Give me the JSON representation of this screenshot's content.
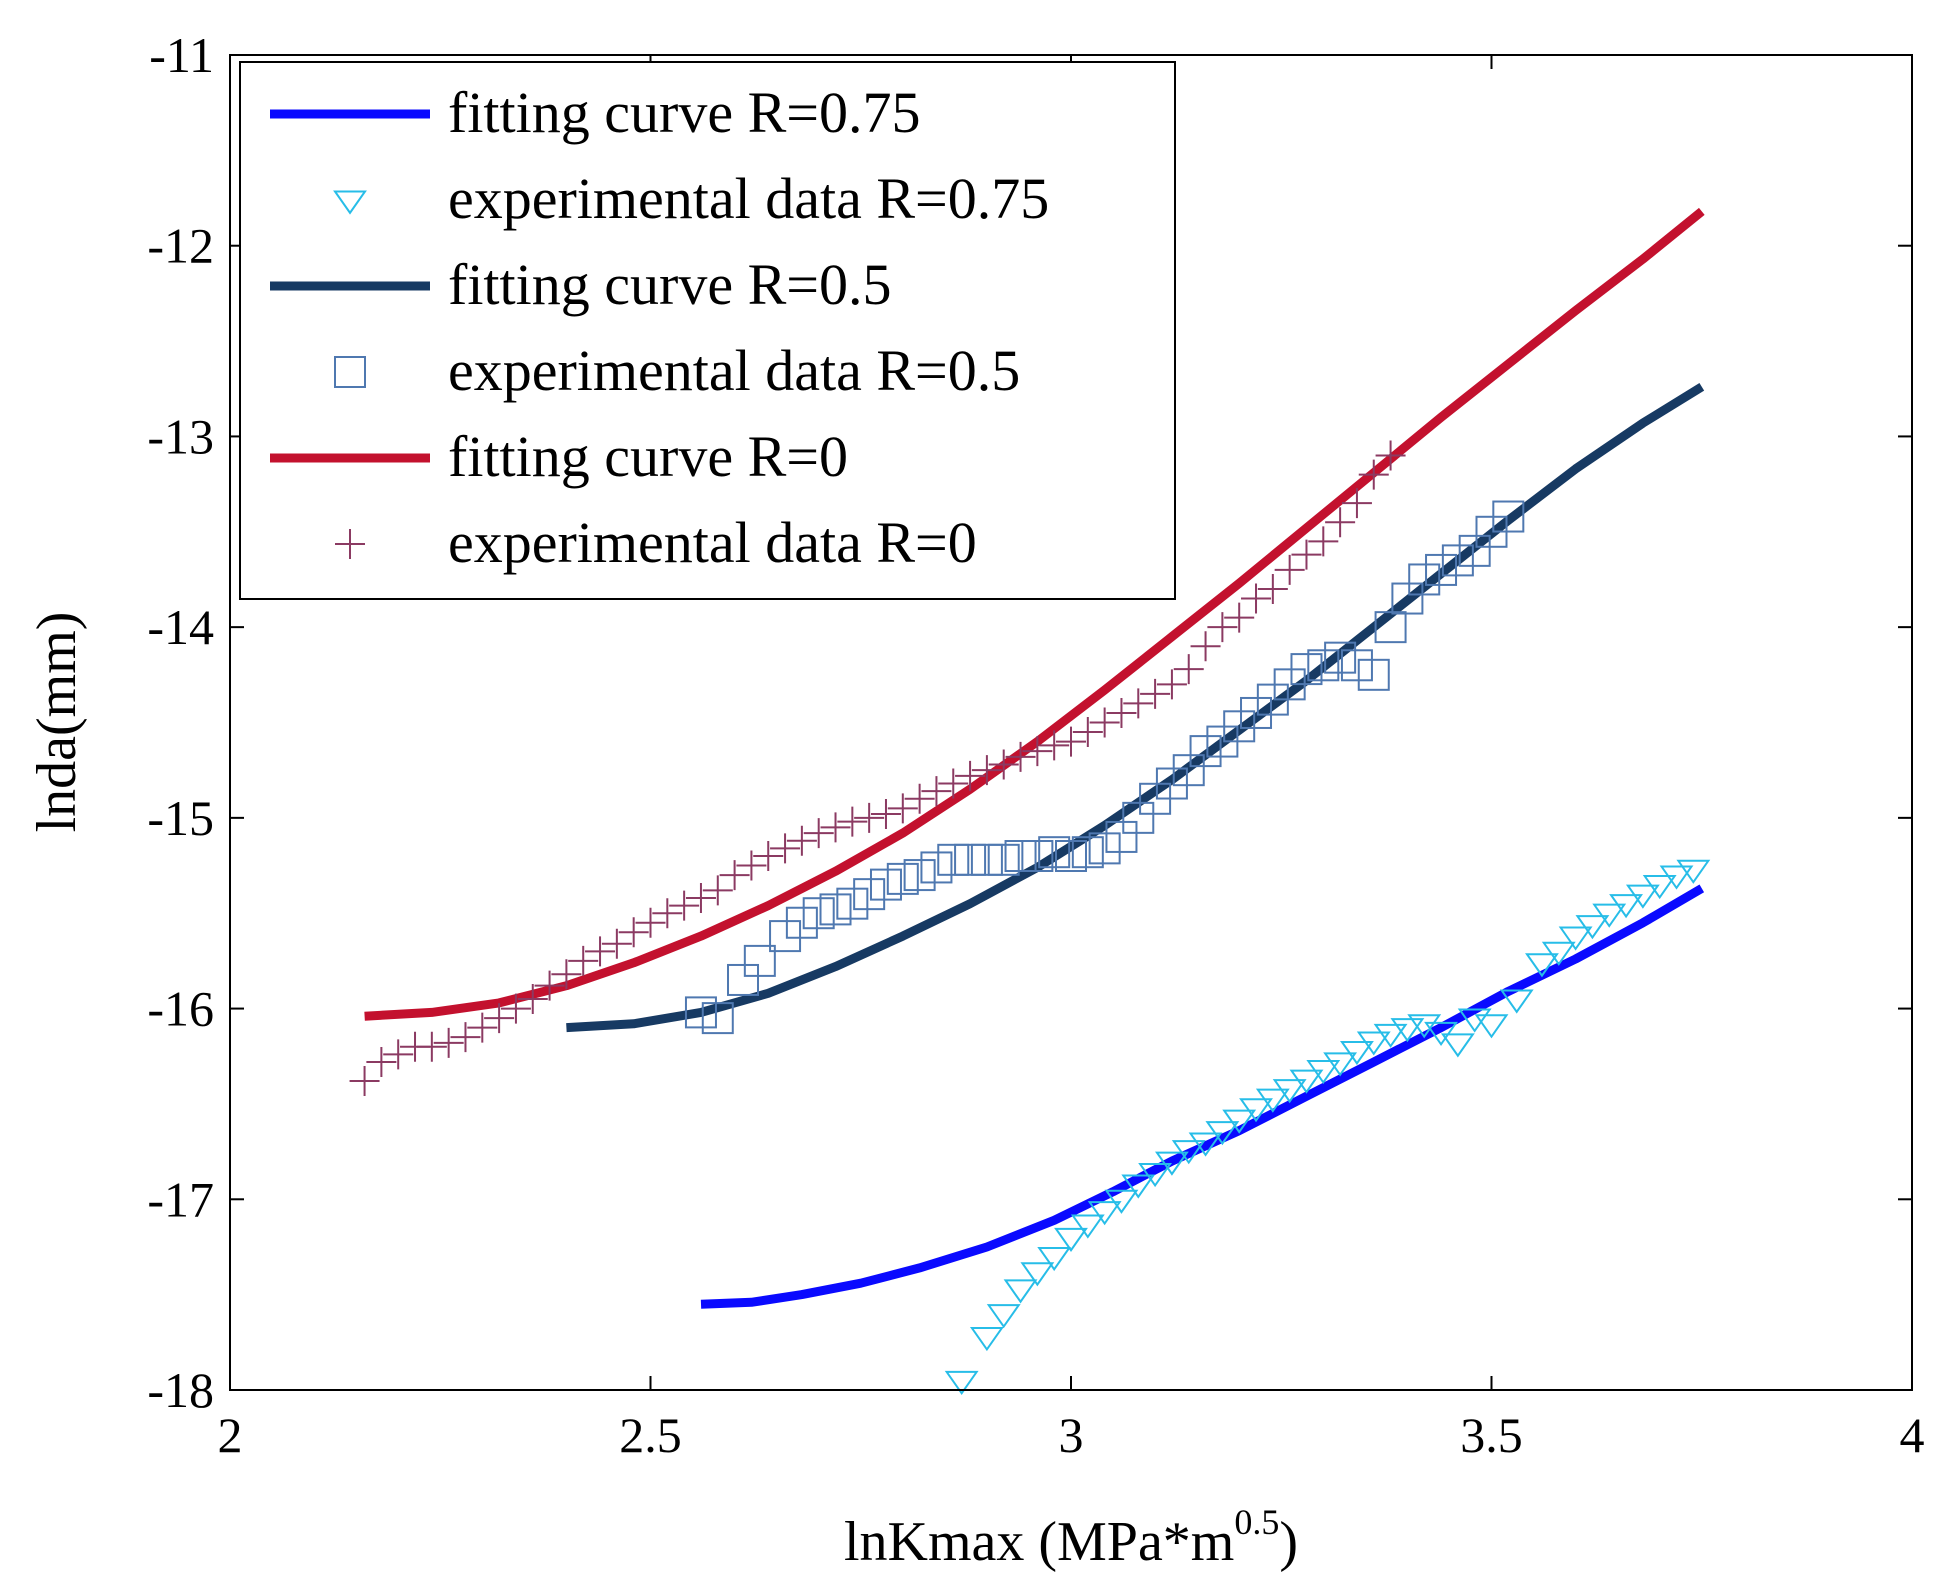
{
  "chart_data": {
    "type": "line",
    "title": "",
    "xlabel_main": "lnKmax (MPa*m",
    "xlabel_sup": "0.5",
    "xlabel_close": ")",
    "ylabel": "lnda(mm)",
    "xlim": [
      2,
      4
    ],
    "ylim": [
      -18,
      -11
    ],
    "xticks": [
      2,
      2.5,
      3,
      3.5,
      4
    ],
    "xtick_labels": [
      "2",
      "2.5",
      "3",
      "3.5",
      "4"
    ],
    "yticks": [
      -11,
      -12,
      -13,
      -14,
      -15,
      -16,
      -17,
      -18
    ],
    "ytick_labels": [
      "-11",
      "-12",
      "-13",
      "-14",
      "-15",
      "-16",
      "-17",
      "-18"
    ],
    "grid": false,
    "legend_position": "top-left",
    "series": [
      {
        "name": "fitting curve R=0.75",
        "kind": "line",
        "color": "#0a0aff",
        "x": [
          2.56,
          2.62,
          2.68,
          2.75,
          2.82,
          2.9,
          2.98,
          3.05,
          3.12,
          3.2,
          3.28,
          3.36,
          3.44,
          3.52,
          3.6,
          3.68,
          3.75
        ],
        "y": [
          -17.55,
          -17.54,
          -17.5,
          -17.44,
          -17.36,
          -17.25,
          -17.11,
          -16.96,
          -16.8,
          -16.64,
          -16.46,
          -16.28,
          -16.1,
          -15.91,
          -15.74,
          -15.55,
          -15.37
        ]
      },
      {
        "name": "experimental data R=0.75",
        "kind": "marker",
        "marker": "triangle-down",
        "color": "#27bde8",
        "x": [
          2.87,
          2.9,
          2.92,
          2.94,
          2.96,
          2.98,
          3.0,
          3.02,
          3.04,
          3.06,
          3.08,
          3.1,
          3.12,
          3.14,
          3.16,
          3.18,
          3.2,
          3.22,
          3.24,
          3.26,
          3.28,
          3.3,
          3.32,
          3.34,
          3.36,
          3.38,
          3.4,
          3.42,
          3.44,
          3.46,
          3.48,
          3.5,
          3.53,
          3.56,
          3.58,
          3.6,
          3.62,
          3.64,
          3.66,
          3.68,
          3.7,
          3.72,
          3.74
        ],
        "y": [
          -17.95,
          -17.72,
          -17.6,
          -17.47,
          -17.38,
          -17.3,
          -17.2,
          -17.13,
          -17.06,
          -17.0,
          -16.92,
          -16.86,
          -16.8,
          -16.74,
          -16.7,
          -16.64,
          -16.58,
          -16.52,
          -16.47,
          -16.42,
          -16.37,
          -16.32,
          -16.28,
          -16.22,
          -16.17,
          -16.13,
          -16.1,
          -16.08,
          -16.12,
          -16.18,
          -16.05,
          -16.08,
          -15.95,
          -15.76,
          -15.7,
          -15.62,
          -15.56,
          -15.5,
          -15.45,
          -15.4,
          -15.35,
          -15.3,
          -15.27
        ]
      },
      {
        "name": "fitting curve R=0.5",
        "kind": "line",
        "color": "#173a63",
        "x": [
          2.4,
          2.48,
          2.56,
          2.64,
          2.72,
          2.8,
          2.88,
          2.96,
          3.04,
          3.12,
          3.2,
          3.28,
          3.36,
          3.44,
          3.52,
          3.6,
          3.68,
          3.75
        ],
        "y": [
          -16.1,
          -16.08,
          -16.02,
          -15.92,
          -15.78,
          -15.62,
          -15.45,
          -15.26,
          -15.04,
          -14.8,
          -14.54,
          -14.28,
          -14.0,
          -13.72,
          -13.44,
          -13.17,
          -12.93,
          -12.74
        ]
      },
      {
        "name": "experimental data R=0.5",
        "kind": "marker",
        "marker": "square",
        "color": "#4f78b0",
        "x": [
          2.56,
          2.58,
          2.61,
          2.63,
          2.66,
          2.68,
          2.7,
          2.72,
          2.74,
          2.76,
          2.78,
          2.8,
          2.82,
          2.84,
          2.86,
          2.88,
          2.9,
          2.92,
          2.94,
          2.96,
          2.98,
          3.0,
          3.02,
          3.04,
          3.06,
          3.08,
          3.1,
          3.12,
          3.14,
          3.16,
          3.18,
          3.2,
          3.22,
          3.24,
          3.26,
          3.28,
          3.3,
          3.32,
          3.34,
          3.36,
          3.38,
          3.4,
          3.42,
          3.44,
          3.46,
          3.48,
          3.5,
          3.52
        ],
        "y": [
          -16.02,
          -16.05,
          -15.85,
          -15.75,
          -15.62,
          -15.55,
          -15.5,
          -15.48,
          -15.45,
          -15.4,
          -15.35,
          -15.32,
          -15.3,
          -15.26,
          -15.22,
          -15.22,
          -15.22,
          -15.22,
          -15.2,
          -15.2,
          -15.18,
          -15.2,
          -15.18,
          -15.16,
          -15.1,
          -15.0,
          -14.9,
          -14.82,
          -14.75,
          -14.65,
          -14.6,
          -14.52,
          -14.45,
          -14.38,
          -14.3,
          -14.22,
          -14.2,
          -14.16,
          -14.2,
          -14.25,
          -14.0,
          -13.85,
          -13.75,
          -13.7,
          -13.65,
          -13.6,
          -13.5,
          -13.42
        ]
      },
      {
        "name": "fitting curve R=0",
        "kind": "line",
        "color": "#c3112e",
        "x": [
          2.16,
          2.24,
          2.32,
          2.4,
          2.48,
          2.56,
          2.64,
          2.72,
          2.8,
          2.88,
          2.96,
          3.04,
          3.12,
          3.2,
          3.28,
          3.36,
          3.44,
          3.52,
          3.6,
          3.68,
          3.75
        ],
        "y": [
          -16.04,
          -16.02,
          -15.97,
          -15.88,
          -15.76,
          -15.62,
          -15.46,
          -15.28,
          -15.08,
          -14.85,
          -14.6,
          -14.33,
          -14.05,
          -13.77,
          -13.48,
          -13.19,
          -12.9,
          -12.62,
          -12.34,
          -12.07,
          -11.82
        ]
      },
      {
        "name": "experimental data R=0",
        "kind": "marker",
        "marker": "plus",
        "color": "#8b3a62",
        "x": [
          2.16,
          2.18,
          2.2,
          2.22,
          2.24,
          2.26,
          2.28,
          2.3,
          2.32,
          2.34,
          2.36,
          2.38,
          2.4,
          2.42,
          2.44,
          2.46,
          2.48,
          2.5,
          2.52,
          2.54,
          2.56,
          2.58,
          2.6,
          2.62,
          2.64,
          2.66,
          2.68,
          2.7,
          2.72,
          2.74,
          2.76,
          2.78,
          2.8,
          2.82,
          2.84,
          2.86,
          2.88,
          2.9,
          2.92,
          2.94,
          2.96,
          2.98,
          3.0,
          3.02,
          3.04,
          3.06,
          3.08,
          3.1,
          3.12,
          3.14,
          3.16,
          3.18,
          3.2,
          3.22,
          3.24,
          3.26,
          3.28,
          3.3,
          3.32,
          3.34,
          3.36,
          3.38
        ],
        "y": [
          -16.38,
          -16.28,
          -16.24,
          -16.2,
          -16.2,
          -16.18,
          -16.15,
          -16.1,
          -16.05,
          -16.0,
          -15.95,
          -15.88,
          -15.82,
          -15.75,
          -15.7,
          -15.66,
          -15.6,
          -15.55,
          -15.5,
          -15.46,
          -15.42,
          -15.38,
          -15.3,
          -15.25,
          -15.2,
          -15.16,
          -15.12,
          -15.08,
          -15.05,
          -15.02,
          -15.0,
          -14.98,
          -14.95,
          -14.9,
          -14.86,
          -14.82,
          -14.78,
          -14.75,
          -14.72,
          -14.68,
          -14.65,
          -14.62,
          -14.6,
          -14.55,
          -14.5,
          -14.45,
          -14.4,
          -14.35,
          -14.3,
          -14.22,
          -14.1,
          -14.0,
          -13.95,
          -13.85,
          -13.8,
          -13.7,
          -13.62,
          -13.55,
          -13.45,
          -13.35,
          -13.2,
          -13.1
        ]
      }
    ]
  }
}
